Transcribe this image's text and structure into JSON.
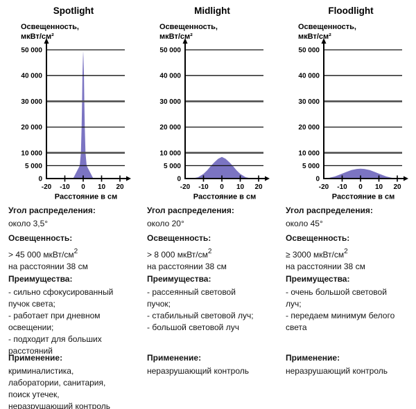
{
  "accent_color": "#7b74c2",
  "grid_thick_color": "#4d4d4d",
  "axis_color": "#000000",
  "chart_data": [
    {
      "type": "area",
      "title": "Spotlight",
      "ylabel_lines": [
        "Освещенность,",
        "мкВт/см²"
      ],
      "xlabel": "Расстояние в см",
      "xlim": [
        -20,
        20
      ],
      "ylim": [
        0,
        50000
      ],
      "grid": true,
      "fill_color": "#7b74c2",
      "y_ticks": [
        {
          "value": 50000,
          "label": "50 000",
          "thick": false
        },
        {
          "value": 40000,
          "label": "40 000",
          "thick": false
        },
        {
          "value": 30000,
          "label": "30 000",
          "thick": true
        },
        {
          "value": 20000,
          "label": "20 000",
          "thick": false
        },
        {
          "value": 10000,
          "label": "10 000",
          "thick": true
        },
        {
          "value": 5000,
          "label": "5 000",
          "thick": false
        },
        {
          "value": 0,
          "label": "0",
          "thick": false
        }
      ],
      "x_ticks": [
        {
          "value": -20,
          "label": "-20"
        },
        {
          "value": -10,
          "label": "-10"
        },
        {
          "value": 0,
          "label": "0"
        },
        {
          "value": 10,
          "label": "10"
        },
        {
          "value": 20,
          "label": "20"
        }
      ],
      "points": [
        [
          -5.5,
          0
        ],
        [
          -1.9,
          5000
        ],
        [
          -1.25,
          10000
        ],
        [
          -0.85,
          20000
        ],
        [
          -0.6,
          30000
        ],
        [
          -0.4,
          40000
        ],
        [
          -0.15,
          47000
        ],
        [
          0,
          49500
        ],
        [
          0.15,
          47000
        ],
        [
          0.4,
          40000
        ],
        [
          0.6,
          30000
        ],
        [
          0.85,
          20000
        ],
        [
          1.25,
          10000
        ],
        [
          1.9,
          5000
        ],
        [
          5.5,
          0
        ]
      ]
    },
    {
      "type": "area",
      "title": "Midlight",
      "ylabel_lines": [
        "Освещенность,",
        "мкВт/см²"
      ],
      "xlabel": "Расстояние в см",
      "xlim": [
        -20,
        20
      ],
      "ylim": [
        0,
        50000
      ],
      "grid": true,
      "fill_color": "#7b74c2",
      "y_ticks": [
        {
          "value": 50000,
          "label": "50 000",
          "thick": false
        },
        {
          "value": 40000,
          "label": "40 000",
          "thick": false
        },
        {
          "value": 30000,
          "label": "30 000",
          "thick": true
        },
        {
          "value": 20000,
          "label": "20 000",
          "thick": false
        },
        {
          "value": 10000,
          "label": "10 000",
          "thick": true
        },
        {
          "value": 5000,
          "label": "5 000",
          "thick": false
        },
        {
          "value": 0,
          "label": "0",
          "thick": false
        }
      ],
      "x_ticks": [
        {
          "value": -20,
          "label": "-20"
        },
        {
          "value": -10,
          "label": "-10"
        },
        {
          "value": 0,
          "label": "0"
        },
        {
          "value": 10,
          "label": "10"
        },
        {
          "value": 20,
          "label": "20"
        }
      ],
      "points": [
        [
          -16.5,
          0
        ],
        [
          -13,
          500
        ],
        [
          -10,
          1800
        ],
        [
          -8,
          3200
        ],
        [
          -6,
          4900
        ],
        [
          -4,
          6400
        ],
        [
          -2,
          7700
        ],
        [
          0,
          8400
        ],
        [
          2,
          7700
        ],
        [
          4,
          6400
        ],
        [
          6,
          4900
        ],
        [
          8,
          3200
        ],
        [
          10,
          1800
        ],
        [
          13,
          500
        ],
        [
          16.5,
          0
        ]
      ]
    },
    {
      "type": "area",
      "title": "Floodlight",
      "ylabel_lines": [
        "Освещенность,",
        "мкВт/см²"
      ],
      "xlabel": "Расстояние в см",
      "xlim": [
        -20,
        20
      ],
      "ylim": [
        0,
        50000
      ],
      "grid": true,
      "fill_color": "#7b74c2",
      "y_ticks": [
        {
          "value": 50000,
          "label": "50 000",
          "thick": false
        },
        {
          "value": 40000,
          "label": "40 000",
          "thick": false
        },
        {
          "value": 30000,
          "label": "30 000",
          "thick": true
        },
        {
          "value": 20000,
          "label": "20 000",
          "thick": false
        },
        {
          "value": 10000,
          "label": "10 000",
          "thick": true
        },
        {
          "value": 5000,
          "label": "5 000",
          "thick": false
        },
        {
          "value": 0,
          "label": "0",
          "thick": false
        }
      ],
      "x_ticks": [
        {
          "value": -20,
          "label": "-20"
        },
        {
          "value": -10,
          "label": "-10"
        },
        {
          "value": 0,
          "label": "0"
        },
        {
          "value": 10,
          "label": "10"
        },
        {
          "value": 20,
          "label": "20"
        }
      ],
      "points": [
        [
          -20,
          0
        ],
        [
          -17,
          300
        ],
        [
          -14,
          800
        ],
        [
          -11,
          1600
        ],
        [
          -8,
          2500
        ],
        [
          -5,
          3300
        ],
        [
          -2,
          3750
        ],
        [
          0,
          3850
        ],
        [
          2,
          3750
        ],
        [
          5,
          3300
        ],
        [
          8,
          2500
        ],
        [
          11,
          1600
        ],
        [
          14,
          800
        ],
        [
          17,
          300
        ],
        [
          20,
          0
        ]
      ]
    }
  ],
  "columns": [
    {
      "name": "spotlight",
      "angle": {
        "header": "Угол распределения:",
        "value": "около 3,5°"
      },
      "illuminance": {
        "header": "Освещенность:",
        "value": "> 45 000 мкВт/см",
        "sup": "2",
        "note": "на расстоянии 38 см"
      },
      "advantages": {
        "header": "Преимущества:",
        "text": "- сильно сфокусированный\nпучок света;\n- работает при дневном\nосвещении;\n- подходит для больших\nрасстояний"
      },
      "application": {
        "header": "Применение:",
        "text": "криминалистика,\nлаборатории, санитария,\nпоиск утечек,\nнеразрушающий контроль"
      }
    },
    {
      "name": "midlight",
      "angle": {
        "header": "Угол распределения:",
        "value": "около 20°"
      },
      "illuminance": {
        "header": "Освещенность:",
        "value": "> 8 000 мкВт/см",
        "sup": "2",
        "note": "на расстоянии 38 см"
      },
      "advantages": {
        "header": "Преимущества:",
        "text": "- рассеянный световой\nпучок;\n- стабильный световой луч;\n- большой световой луч"
      },
      "application": {
        "header": "Применение:",
        "text": "неразрушающий контроль"
      }
    },
    {
      "name": "floodlight",
      "angle": {
        "header": "Угол распределения:",
        "value": "около 45°"
      },
      "illuminance": {
        "header": "Освещенность:",
        "value": "≥ 3000 мкВт/см",
        "sup": "2",
        "note": "на расстоянии 38 см"
      },
      "advantages": {
        "header": "Преимущества:",
        "text": "- очень большой световой\nлуч;\n- передаем минимум белого\nсвета"
      },
      "application": {
        "header": "Применение:",
        "text": "неразрушающий контроль"
      }
    }
  ]
}
